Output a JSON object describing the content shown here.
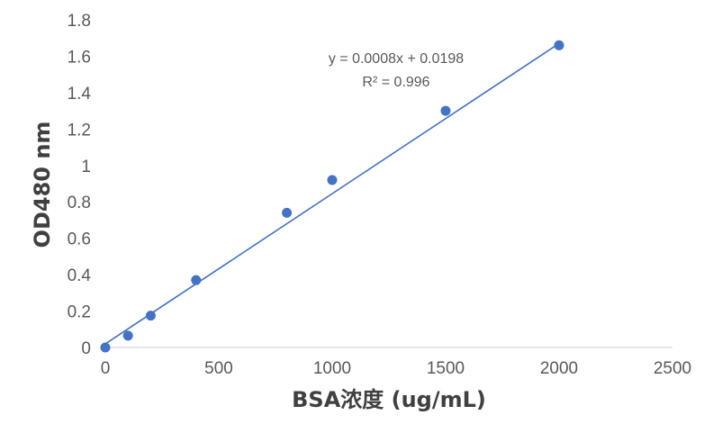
{
  "chart_data": {
    "type": "scatter",
    "title": "",
    "xlabel": "BSA浓度 (ug/mL)",
    "ylabel": "OD480 nm",
    "xlim": [
      0,
      2500
    ],
    "ylim": [
      0,
      1.8
    ],
    "x_ticks": [
      "0",
      "500",
      "1000",
      "1500",
      "2000",
      "2500"
    ],
    "y_ticks": [
      "0",
      "0.2",
      "0.4",
      "0.6",
      "0.8",
      "1",
      "1.2",
      "1.4",
      "1.6",
      "1.8"
    ],
    "grid": false,
    "legend": "none",
    "series": [
      {
        "marker_color": "#4472C4",
        "points": [
          {
            "x": 0,
            "y": 0.0
          },
          {
            "x": 100,
            "y": 0.065
          },
          {
            "x": 200,
            "y": 0.175
          },
          {
            "x": 400,
            "y": 0.37
          },
          {
            "x": 800,
            "y": 0.74
          },
          {
            "x": 1000,
            "y": 0.92
          },
          {
            "x": 1500,
            "y": 1.3
          },
          {
            "x": 2000,
            "y": 1.66
          }
        ]
      }
    ],
    "trendline": {
      "type": "linear",
      "slope": 0.0008,
      "intercept": 0.0198,
      "x_range": [
        0,
        2000
      ],
      "color": "#4472C4",
      "equation": "y = 0.0008x + 0.0198",
      "r_squared": "R² = 0.996"
    },
    "axis_color": "#D9D9D9"
  }
}
